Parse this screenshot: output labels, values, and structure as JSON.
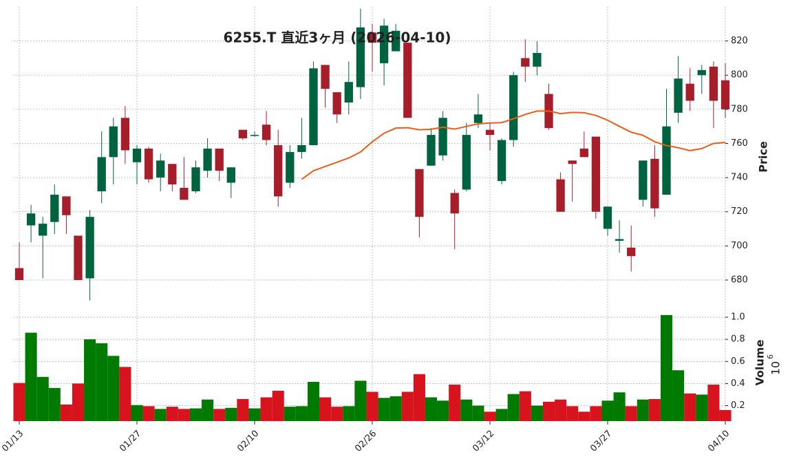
{
  "chart_data": [
    {
      "type": "candlestick",
      "title": "6255.T 直近3ヶ月 (2026-04-10)",
      "ylabel": "Price",
      "categories": [
        "01/13",
        null,
        null,
        null,
        null,
        null,
        null,
        null,
        null,
        null,
        "01/27",
        null,
        null,
        null,
        null,
        null,
        null,
        null,
        null,
        null,
        "02/10",
        null,
        null,
        null,
        null,
        null,
        null,
        null,
        null,
        null,
        "02/26",
        null,
        null,
        null,
        null,
        null,
        null,
        null,
        null,
        null,
        "03/12",
        null,
        null,
        null,
        null,
        null,
        null,
        null,
        null,
        null,
        "03/27",
        null,
        null,
        null,
        null,
        null,
        null,
        null,
        null,
        null,
        "04/10"
      ],
      "open": [
        687,
        712,
        706,
        714,
        729,
        706,
        681,
        732,
        752,
        775,
        749,
        757,
        740,
        748,
        734,
        732,
        744,
        757,
        737,
        768,
        765,
        771,
        759,
        737,
        755,
        759,
        806,
        790,
        784,
        793,
        825,
        807,
        814,
        819,
        745,
        747,
        753,
        731,
        733,
        772,
        768,
        738,
        762,
        810,
        805,
        789,
        739,
        750,
        757,
        764,
        710,
        703,
        699,
        727,
        751,
        730,
        778,
        795,
        800,
        805,
        797
      ],
      "high": [
        702,
        724,
        717,
        736,
        729,
        706,
        721,
        767,
        775,
        782,
        759,
        758,
        754,
        748,
        752,
        750,
        763,
        757,
        746,
        768,
        767,
        779,
        768,
        759,
        775,
        808,
        806,
        790,
        808,
        839,
        830,
        833,
        830,
        819,
        745,
        769,
        779,
        733,
        772,
        789,
        772,
        763,
        802,
        821,
        820,
        795,
        743,
        750,
        767,
        764,
        723,
        715,
        712,
        750,
        759,
        792,
        811,
        804,
        806,
        808,
        807
      ],
      "low": [
        680,
        702,
        681,
        707,
        707,
        680,
        668,
        725,
        736,
        748,
        736,
        737,
        732,
        732,
        727,
        731,
        740,
        738,
        728,
        762,
        764,
        759,
        723,
        734,
        751,
        759,
        781,
        772,
        777,
        786,
        802,
        794,
        814,
        775,
        705,
        747,
        750,
        698,
        732,
        769,
        756,
        736,
        758,
        796,
        800,
        768,
        720,
        726,
        752,
        716,
        706,
        696,
        685,
        723,
        717,
        730,
        772,
        779,
        789,
        769,
        775
      ],
      "close": [
        680,
        719,
        713,
        730,
        718,
        680,
        717,
        752,
        770,
        756,
        757,
        739,
        750,
        736,
        727,
        746,
        757,
        744,
        746,
        763,
        765,
        762,
        729,
        755,
        759,
        804,
        792,
        777,
        796,
        828,
        819,
        829,
        826,
        775,
        717,
        765,
        775,
        719,
        765,
        777,
        765,
        762,
        800,
        805,
        813,
        769,
        720,
        748,
        752,
        720,
        723,
        704,
        694,
        750,
        722,
        770,
        798,
        785,
        803,
        785,
        780
      ],
      "up_color": "#006340",
      "down_color": "#a61e2a",
      "line": {
        "color": "#f05a14",
        "values": [
          null,
          null,
          null,
          null,
          null,
          null,
          null,
          null,
          null,
          null,
          null,
          null,
          null,
          null,
          null,
          null,
          null,
          null,
          null,
          null,
          null,
          null,
          null,
          null,
          739,
          744,
          746.5,
          749,
          751.5,
          755,
          761,
          766,
          769,
          769.2,
          768,
          768.3,
          769.5,
          768.4,
          770,
          771.5,
          772,
          772.2,
          774.5,
          777,
          779,
          779,
          777.5,
          778.2,
          778,
          776.4,
          773.6,
          770,
          766.6,
          764.8,
          761,
          758.8,
          757.5,
          755.8,
          757,
          760,
          760.6
        ]
      },
      "ylim": [
        666.7,
        840
      ],
      "yticks": [
        680,
        700,
        720,
        740,
        760,
        780,
        800,
        820
      ],
      "grid": true
    },
    {
      "type": "bar",
      "ylabel": "Volume",
      "scale": {
        "base": "10",
        "exponent": "6"
      },
      "values": [
        0.405,
        0.86,
        0.46,
        0.36,
        0.21,
        0.4,
        0.8,
        0.765,
        0.65,
        0.55,
        0.205,
        0.195,
        0.17,
        0.19,
        0.17,
        0.175,
        0.255,
        0.17,
        0.18,
        0.26,
        0.175,
        0.275,
        0.335,
        0.19,
        0.195,
        0.415,
        0.275,
        0.19,
        0.195,
        0.425,
        0.325,
        0.27,
        0.285,
        0.325,
        0.485,
        0.275,
        0.245,
        0.39,
        0.255,
        0.2,
        0.145,
        0.17,
        0.305,
        0.33,
        0.2,
        0.235,
        0.255,
        0.195,
        0.145,
        0.195,
        0.245,
        0.32,
        0.195,
        0.255,
        0.26,
        1.02,
        0.52,
        0.31,
        0.3,
        0.39,
        0.16
      ],
      "up_color": "#007a00",
      "down_color": "#d7141e",
      "ylim": [
        0.06,
        1.1
      ],
      "yticks": [
        0.2,
        0.4,
        0.6,
        0.8,
        {
          "value": 1,
          "label": "1.0"
        }
      ],
      "grid": true
    }
  ]
}
